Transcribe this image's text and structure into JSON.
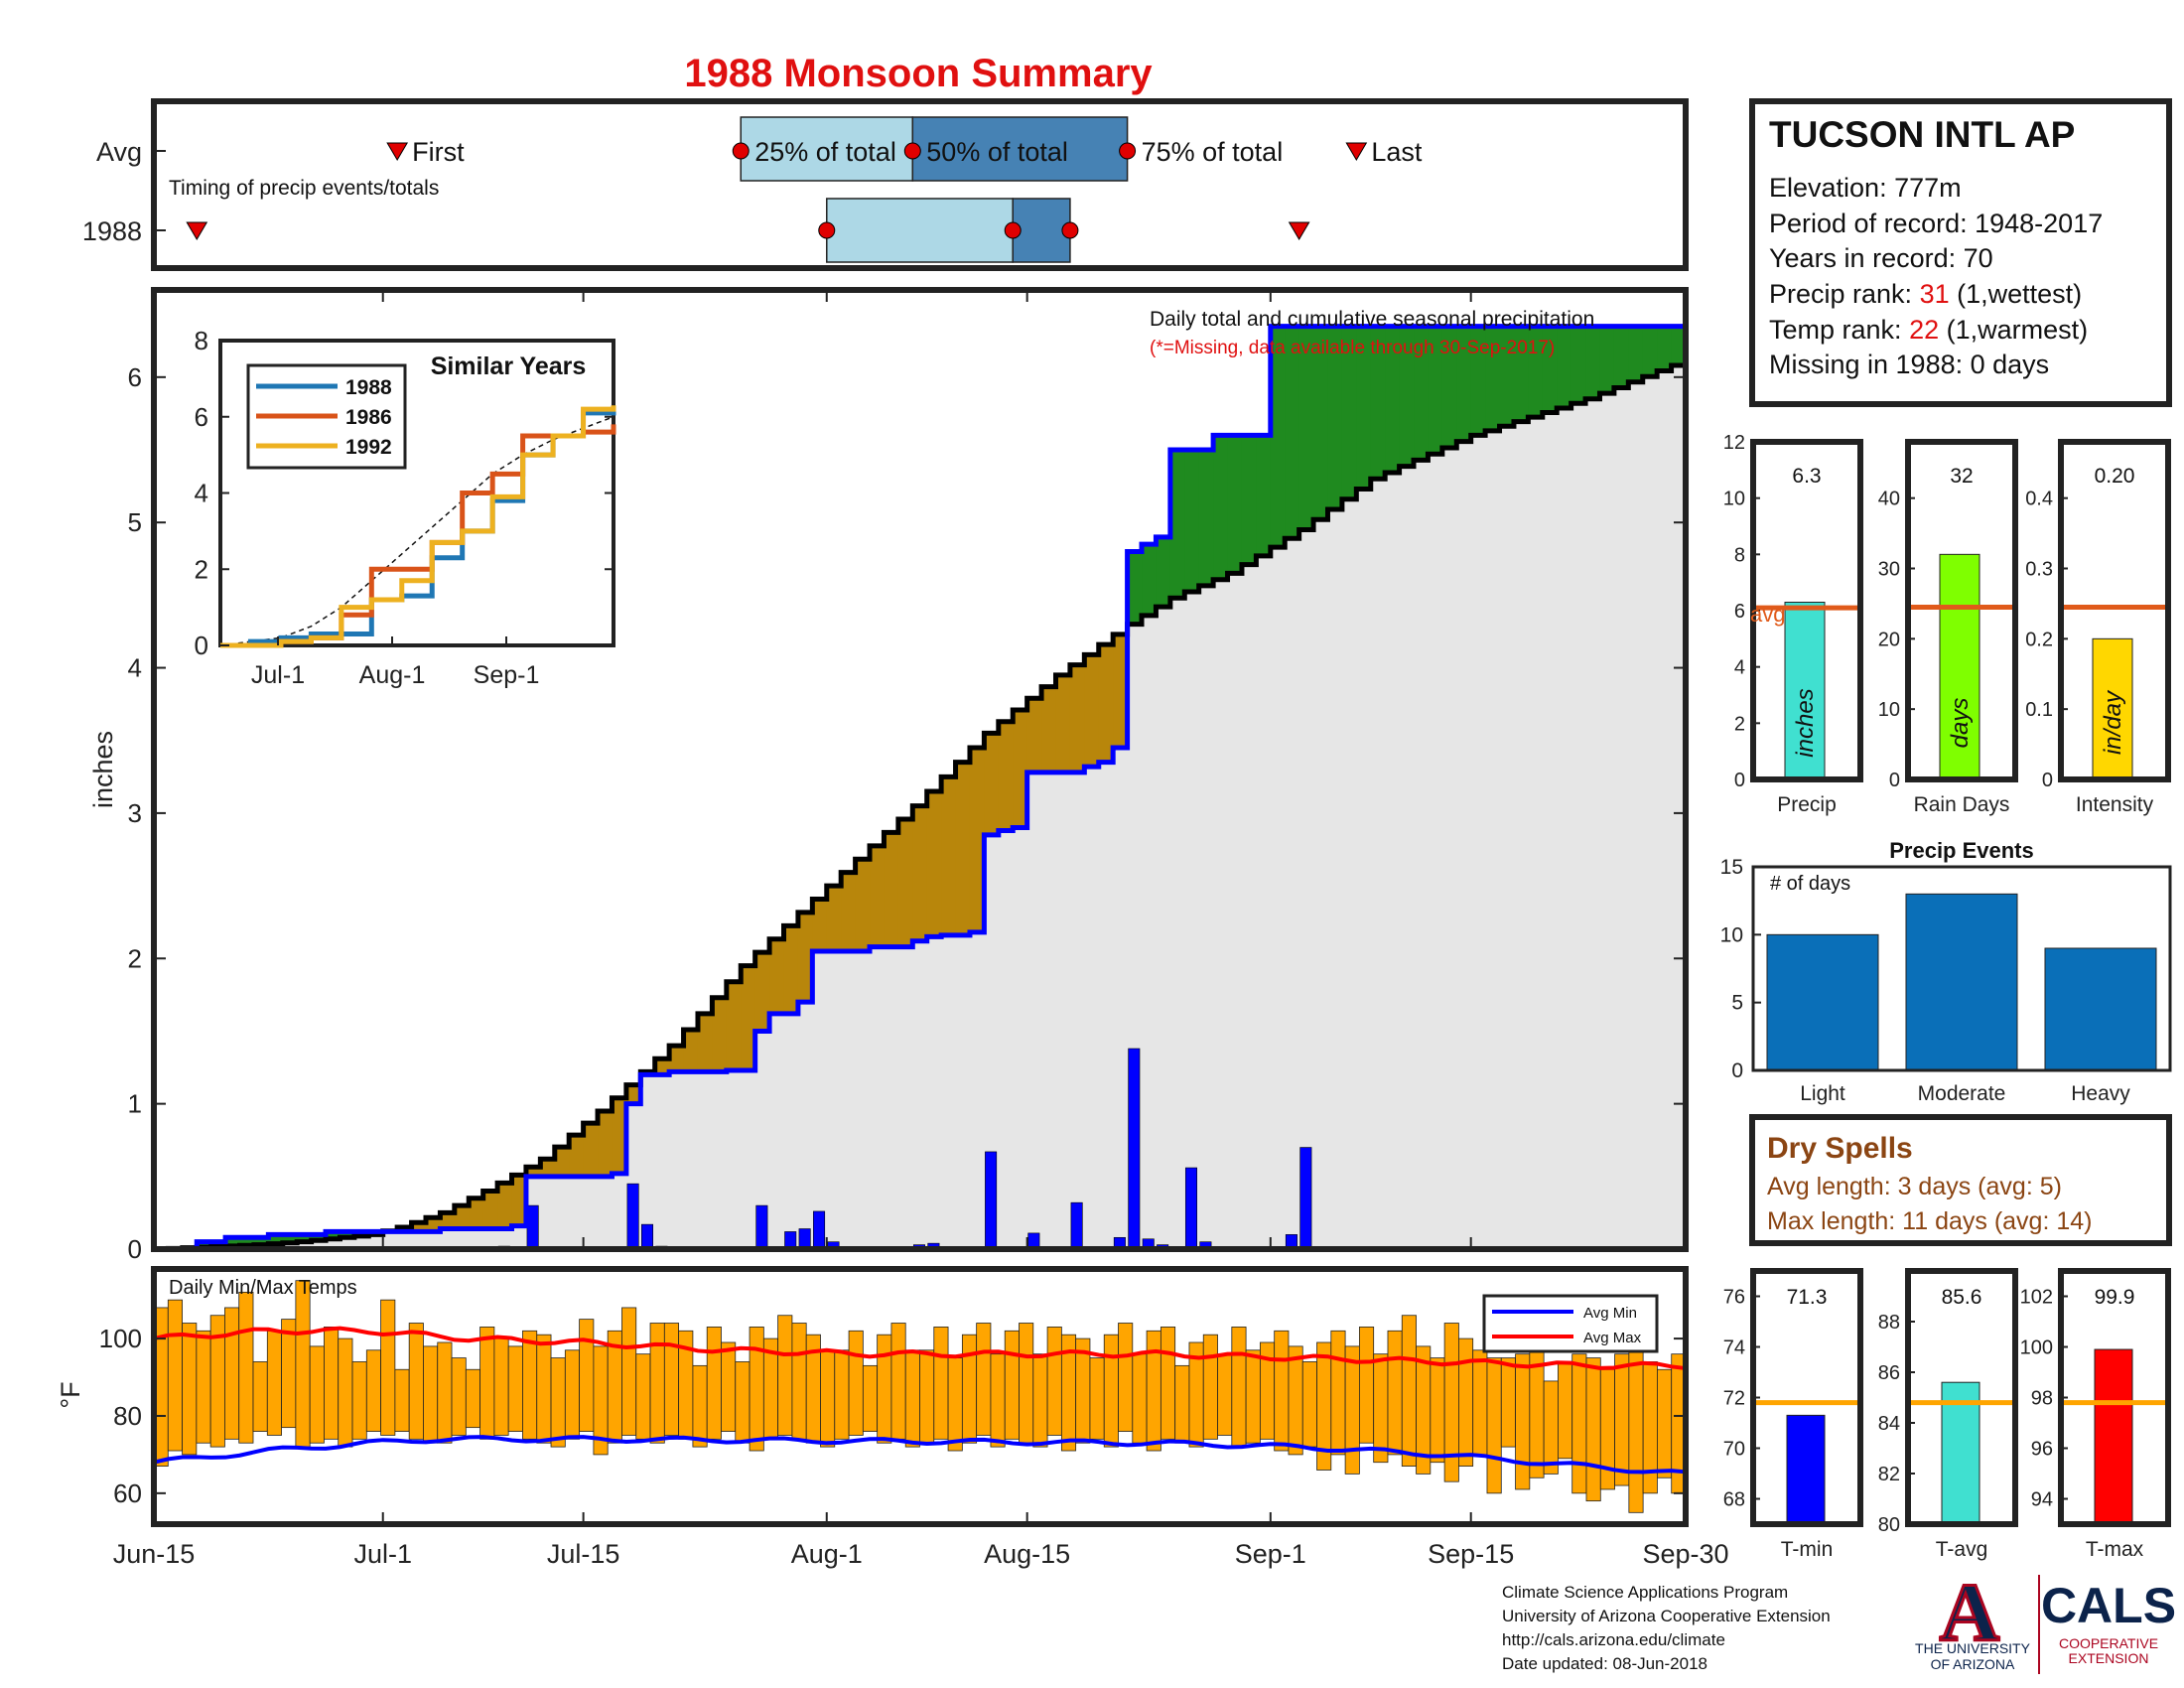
{
  "title": "1988 Monsoon Summary",
  "colors": {
    "title": "#e01010",
    "avg_cum_fill": "#e6e6e6",
    "deficit_fill": "#b8860b",
    "surplus_fill": "#1f8a1f",
    "obs_line": "#0000ff",
    "avg_line": "#000000",
    "timing_light": "#add8e6",
    "timing_dark": "#4682b4",
    "marker": "#e00000",
    "temp_bar": "#ffa500",
    "avg_min": "#0000ff",
    "avg_max": "#ff0000",
    "rank_highlight": "#e01010",
    "dry_spell_text": "#8b4513",
    "avg_ref": "#e05a1a",
    "orange_ref": "#ffa500"
  },
  "timing": {
    "row_labels": [
      "Avg",
      "1988"
    ],
    "subtitle": "Timing of precip events/totals",
    "labels": {
      "first": "First",
      "p25": "25% of total",
      "p50": "50% of total",
      "p75": "75% of total",
      "last": "Last"
    },
    "avg": {
      "first": 17,
      "p25": 41,
      "p50": 53,
      "p75": 68,
      "last": 84
    },
    "y1988": {
      "first": 3,
      "p25": 47,
      "p50": 60,
      "p75": 64,
      "last": 80
    }
  },
  "main": {
    "annotation": "Daily total and cumulative seasonal precipitation",
    "missing_note": "(*=Missing, data available through 30-Sep-2017)",
    "ylabel": "inches",
    "yticks": [
      "0",
      "1",
      "2",
      "3",
      "4",
      "5",
      "6"
    ],
    "xticks": [
      "Jun-15",
      "Jul-1",
      "Jul-15",
      "Aug-1",
      "Aug-15",
      "Sep-1",
      "Sep-15",
      "Sep-30"
    ],
    "xtick_days": [
      0,
      16,
      30,
      47,
      61,
      78,
      92,
      107
    ]
  },
  "chart_data": [
    {
      "type": "line",
      "title": "",
      "xlabel": "",
      "ylabel": "inches",
      "x_range": [
        "Jun-15",
        "Sep-30"
      ],
      "ylim": [
        0,
        6.6
      ],
      "series": [
        {
          "name": "1988 cumulative",
          "day": [
            0,
            3,
            5,
            8,
            12,
            20,
            25,
            26,
            32,
            33,
            34,
            36,
            40,
            42,
            43,
            45,
            46,
            50,
            53,
            54,
            55,
            57,
            58,
            59,
            60,
            61,
            65,
            66,
            67,
            68,
            69,
            70,
            71,
            72,
            74,
            75,
            78,
            80,
            92,
            107
          ],
          "values": [
            0,
            0.05,
            0.08,
            0.1,
            0.12,
            0.14,
            0.16,
            0.5,
            0.52,
            1.0,
            1.2,
            1.22,
            1.23,
            1.5,
            1.62,
            1.7,
            2.05,
            2.08,
            2.12,
            2.15,
            2.16,
            2.18,
            2.85,
            2.88,
            2.9,
            3.28,
            3.32,
            3.35,
            3.45,
            4.8,
            4.85,
            4.9,
            5.5,
            5.5,
            5.6,
            5.6,
            6.35,
            6.35,
            6.35,
            6.35
          ]
        },
        {
          "name": "Avg cumulative",
          "day": [
            0,
            7,
            10,
            15,
            17,
            20,
            23,
            27,
            31,
            36,
            41,
            47,
            53,
            58,
            63,
            68,
            71,
            75,
            80,
            85,
            92,
            100,
            107
          ],
          "values": [
            0,
            0.03,
            0.05,
            0.1,
            0.15,
            0.25,
            0.4,
            0.62,
            0.95,
            1.4,
            1.95,
            2.5,
            3.05,
            3.55,
            3.95,
            4.3,
            4.48,
            4.65,
            4.95,
            5.3,
            5.6,
            5.85,
            6.12
          ]
        },
        {
          "name": "Daily precip",
          "day": [
            24,
            26,
            33,
            34,
            35,
            42,
            44,
            45,
            46,
            47,
            53,
            54,
            58,
            61,
            64,
            67,
            68,
            69,
            70,
            72,
            73,
            79,
            80
          ],
          "values": [
            0.02,
            0.3,
            0.45,
            0.17,
            0.02,
            0.3,
            0.12,
            0.14,
            0.26,
            0.05,
            0.03,
            0.04,
            0.67,
            0.11,
            0.32,
            0.08,
            1.38,
            0.07,
            0.03,
            0.56,
            0.05,
            0.1,
            0.7
          ]
        }
      ]
    },
    {
      "type": "line",
      "title": "Similar Years",
      "xticks": [
        "Jul-1",
        "Aug-1",
        "Sep-1"
      ],
      "ylim": [
        0,
        8
      ],
      "yticks": [
        "0",
        "2",
        "4",
        "6",
        "8"
      ],
      "series": [
        {
          "name": "1988",
          "values": [
            0,
            0.1,
            0.2,
            0.3,
            0.3,
            1.2,
            1.3,
            2.3,
            3.0,
            3.8,
            5.0,
            5.5,
            6.1,
            6.2
          ]
        },
        {
          "name": "1986",
          "values": [
            0,
            0,
            0.1,
            0.2,
            0.8,
            2.0,
            2.0,
            2.7,
            4.0,
            4.5,
            5.5,
            5.5,
            5.6,
            5.8
          ]
        },
        {
          "name": "1992",
          "values": [
            0,
            0,
            0.1,
            0.2,
            1.0,
            1.2,
            1.7,
            2.7,
            3.0,
            3.9,
            5.0,
            5.5,
            6.2,
            6.3
          ]
        }
      ],
      "avg_values": [
        0,
        0.1,
        0.2,
        0.5,
        1.0,
        1.7,
        2.4,
        3.1,
        3.8,
        4.5,
        5.0,
        5.4,
        5.7,
        6.0
      ]
    },
    {
      "type": "bar",
      "title": "Daily Min/Max Temps",
      "ylabel": "°F",
      "ylim": [
        52,
        118
      ],
      "yticks": [
        "60",
        "80",
        "100"
      ],
      "legend": [
        "Avg Min",
        "Avg Max"
      ],
      "min_temps": [
        67,
        71,
        70,
        73,
        72,
        74,
        73,
        76,
        75,
        77,
        72,
        73,
        74,
        72,
        74,
        76,
        75,
        76,
        74,
        73,
        73,
        75,
        77,
        74,
        75,
        76,
        74,
        73,
        72,
        74,
        76,
        70,
        73,
        75,
        74,
        73,
        75,
        74,
        72,
        74,
        76,
        73,
        71,
        74,
        75,
        74,
        73,
        72,
        74,
        75,
        76,
        73,
        74,
        72,
        73,
        74,
        71,
        73,
        75,
        72,
        74,
        73,
        72,
        75,
        71,
        73,
        74,
        72,
        76,
        73,
        71,
        74,
        73,
        72,
        74,
        75,
        72,
        73,
        74,
        71,
        70,
        72,
        66,
        70,
        65,
        73,
        68,
        70,
        67,
        65,
        68,
        63,
        67,
        70,
        60,
        72,
        61,
        64,
        65,
        69,
        60,
        58,
        61,
        62,
        55,
        60,
        64,
        60
      ],
      "max_temps": [
        108,
        110,
        104,
        102,
        106,
        108,
        112,
        94,
        102,
        105,
        115,
        98,
        103,
        100,
        94,
        97,
        110,
        92,
        104,
        98,
        99,
        95,
        92,
        103,
        100,
        98,
        102,
        101,
        95,
        97,
        105,
        98,
        102,
        108,
        96,
        104,
        104,
        102,
        93,
        103,
        99,
        94,
        103,
        100,
        106,
        104,
        101,
        97,
        97,
        102,
        93,
        101,
        104,
        97,
        97,
        103,
        95,
        101,
        104,
        96,
        102,
        104,
        96,
        103,
        101,
        100,
        95,
        101,
        104,
        96,
        102,
        103,
        93,
        99,
        101,
        96,
        103,
        97,
        99,
        102,
        98,
        94,
        99,
        102,
        98,
        103,
        96,
        102,
        106,
        98,
        95,
        104,
        100,
        97,
        95,
        95,
        96,
        97,
        89,
        94,
        96,
        95,
        92,
        96,
        100,
        94,
        92,
        96
      ],
      "avg_min": {
        "day": [
          0,
          8,
          15,
          20,
          30,
          50,
          70,
          80,
          90,
          100,
          107
        ],
        "values": [
          68,
          71,
          73,
          74,
          74,
          73.5,
          73,
          72,
          70,
          67,
          65
        ]
      },
      "avg_max": {
        "day": [
          0,
          8,
          15,
          22,
          30,
          40,
          50,
          70,
          80,
          90,
          100,
          107
        ],
        "values": [
          100,
          102,
          102,
          100,
          99,
          97,
          96,
          96,
          95,
          94,
          93,
          93
        ]
      }
    },
    {
      "type": "bar",
      "title": "Precip Events",
      "categories": [
        "Light",
        "Moderate",
        "Heavy"
      ],
      "values": [
        10,
        13,
        9
      ],
      "ylim": [
        0,
        15
      ],
      "yticks": [
        "0",
        "5",
        "10",
        "15"
      ],
      "annotation": "# of days"
    }
  ],
  "station": {
    "name": "TUCSON INTL AP",
    "elevation": "Elevation: 777m",
    "period": "Period of record: 1948-2017",
    "years": "Years in record: 70",
    "precip_rank_label": "Precip rank: ",
    "precip_rank_value": "31",
    "precip_rank_note": " (1,wettest)",
    "temp_rank_label": "Temp rank: ",
    "temp_rank_value": "22",
    "temp_rank_note": " (1,warmest)",
    "missing": "Missing in 1988: 0 days"
  },
  "mini_bars": [
    {
      "label": "Precip",
      "value": 6.3,
      "value_text": "6.3",
      "avg": 6.1,
      "ylim": [
        0,
        12
      ],
      "ticks": [
        "0",
        "2",
        "4",
        "6",
        "8",
        "10",
        "12"
      ],
      "unit": "inches",
      "color": "#40e0d0",
      "avg_label": "avg"
    },
    {
      "label": "Rain Days",
      "value": 32,
      "value_text": "32",
      "avg": 24.5,
      "ylim": [
        0,
        48
      ],
      "ticks": [
        "0",
        "10",
        "20",
        "30",
        "40"
      ],
      "unit": "days",
      "color": "#7fff00"
    },
    {
      "label": "Intensity",
      "value": 0.2,
      "value_text": "0.20",
      "avg": 0.245,
      "ylim": [
        0,
        0.48
      ],
      "ticks": [
        "0",
        "0.1",
        "0.2",
        "0.3",
        "0.4"
      ],
      "unit": "in/day",
      "color": "#ffd700"
    }
  ],
  "dry_spells": {
    "title": "Dry Spells",
    "avg_length": "Avg length: 3 days (avg: 5)",
    "max_length": "Max length: 11 days (avg: 14)"
  },
  "temp_bars": [
    {
      "label": "T-min",
      "value": 71.3,
      "value_text": "71.3",
      "avg": 71.8,
      "ylim": [
        67,
        77
      ],
      "ticks": [
        "68",
        "70",
        "72",
        "74",
        "76"
      ],
      "color": "#0000ff"
    },
    {
      "label": "T-avg",
      "value": 85.6,
      "value_text": "85.6",
      "avg": 84.8,
      "ylim": [
        80,
        90
      ],
      "ticks": [
        "80",
        "82",
        "84",
        "86",
        "88"
      ],
      "color": "#40e0d0"
    },
    {
      "label": "T-max",
      "value": 99.9,
      "value_text": "99.9",
      "avg": 97.8,
      "ylim": [
        93,
        103
      ],
      "ticks": [
        "94",
        "96",
        "98",
        "100",
        "102"
      ],
      "color": "#ff0000"
    }
  ],
  "footer": {
    "line1": "Climate Science Applications Program",
    "line2": "University of Arizona Cooperative Extension",
    "line3": "http://cals.arizona.edu/climate",
    "line4": " Date updated: 08-Jun-2018"
  },
  "logos": {
    "ua_letter": "A",
    "ua_name_1": "THE UNIVERSITY",
    "ua_name_2": "OF ARIZONA",
    "cals": "CALS",
    "cals_sub_1": "COOPERATIVE",
    "cals_sub_2": "EXTENSION"
  }
}
